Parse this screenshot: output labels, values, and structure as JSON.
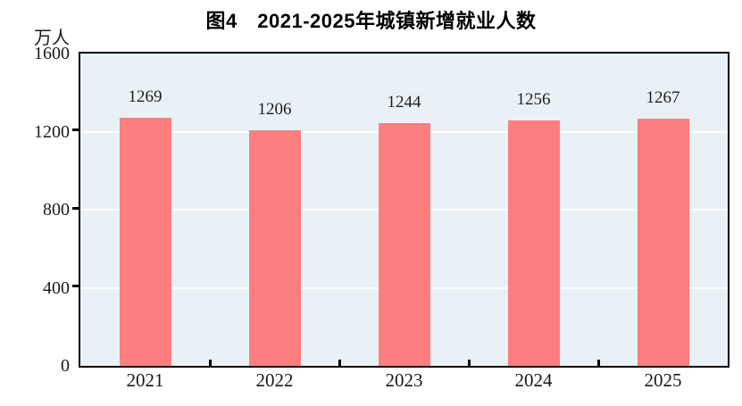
{
  "figure": {
    "title": "图4　2021-2025年城镇新增就业人数",
    "unit_label": "万人"
  },
  "chart_data": {
    "type": "bar",
    "title": "图4　2021-2025年城镇新增就业人数",
    "subtitle": "",
    "categories": [
      "2021",
      "2022",
      "2023",
      "2024",
      "2025"
    ],
    "values": [
      1269,
      1206,
      1244,
      1256,
      1267
    ],
    "data_labels": [
      "1269",
      "1206",
      "1244",
      "1256",
      "1267"
    ],
    "xlabel": "",
    "ylabel": "万人",
    "ylim": [
      0,
      1600
    ],
    "yticks": [
      0,
      400,
      800,
      1200,
      1600
    ],
    "ytick_labels": [
      "0",
      "400",
      "800",
      "1200",
      "1600"
    ],
    "grid": true,
    "legend_position": "none",
    "colors": {
      "bar": "#fd7e7e",
      "plot_background": "#e9f1f6",
      "gridline": "#ffffff",
      "axis_frame": "#000000",
      "title_text": "#000000",
      "label_text": "#1a1a1a"
    }
  }
}
